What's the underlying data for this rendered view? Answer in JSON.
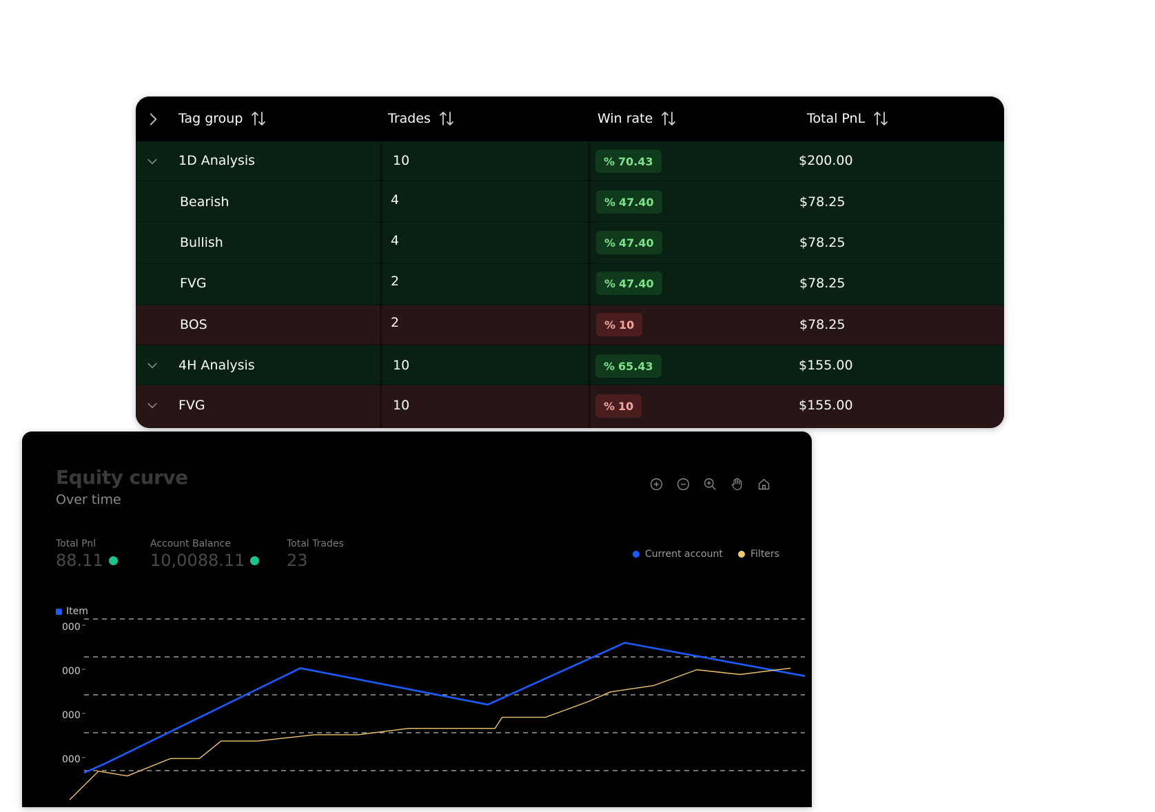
{
  "table": {
    "headers": [
      {
        "label": "Tag group"
      },
      {
        "label": "Trades"
      },
      {
        "label": "Win rate"
      },
      {
        "label": "Total PnL"
      }
    ],
    "rows": [
      {
        "name": "1D Analysis",
        "trades": "10",
        "win_symbol": "%",
        "win_rate": "70.43",
        "pnl": "$200.00",
        "status": "positive",
        "group": true
      },
      {
        "name": "Bearish",
        "trades": "4",
        "win_symbol": "%",
        "win_rate": "47.40",
        "pnl": "$78.25",
        "status": "positive",
        "group": false
      },
      {
        "name": "Bullish",
        "trades": "4",
        "win_symbol": "%",
        "win_rate": "47.40",
        "pnl": "$78.25",
        "status": "positive",
        "group": false
      },
      {
        "name": "FVG",
        "trades": "2",
        "win_symbol": "%",
        "win_rate": "47.40",
        "pnl": "$78.25",
        "status": "positive",
        "group": false
      },
      {
        "name": "BOS",
        "trades": "2",
        "win_symbol": "%",
        "win_rate": "10",
        "pnl": "$78.25",
        "status": "negative",
        "group": false
      },
      {
        "name": "4H Analysis",
        "trades": "10",
        "win_symbol": "%",
        "win_rate": "65.43",
        "pnl": "$155.00",
        "status": "positive",
        "group": true
      },
      {
        "name": "FVG",
        "trades": "10",
        "win_symbol": "%",
        "win_rate": "10",
        "pnl": "$155.00",
        "status": "negative",
        "group": true
      }
    ]
  },
  "equity": {
    "title": "Equity curve",
    "subtitle": "Over time",
    "tools": [
      "zoom-in-icon",
      "zoom-out-icon",
      "magnifier-icon",
      "pan-hand-icon",
      "home-icon"
    ],
    "stats": [
      {
        "label": "Total Pnl",
        "value": "88.11",
        "trend": "up"
      },
      {
        "label": "Account Balance",
        "value": "10,0088.11",
        "trend": "up"
      },
      {
        "label": "Total Trades",
        "value": "23",
        "trend": ""
      }
    ],
    "legend": [
      {
        "label": "Current account",
        "color": "#1a5cff"
      },
      {
        "label": "Filters",
        "color": "#f2c66d"
      }
    ],
    "item_legend": "Item",
    "colors": {
      "positive_row": "#082112",
      "negative_row": "#281515",
      "current": "#1a5cff",
      "filters": "#f2c66d"
    }
  },
  "chart_data": {
    "type": "line",
    "ytick_labels": [
      "000",
      "000",
      "000",
      "000"
    ],
    "series": [
      {
        "name": "Current account",
        "color": "#1a5cff",
        "points": [
          [
            0,
            0.03
          ],
          [
            0.03,
            0.09
          ],
          [
            0.3,
            0.69
          ],
          [
            0.56,
            0.46
          ],
          [
            0.75,
            0.85
          ],
          [
            1.0,
            0.64
          ]
        ]
      },
      {
        "name": "Filters",
        "color": "#f2c66d",
        "points": [
          [
            -0.02,
            -0.14
          ],
          [
            0.02,
            0.04
          ],
          [
            0.06,
            0.01
          ],
          [
            0.12,
            0.12
          ],
          [
            0.16,
            0.12
          ],
          [
            0.19,
            0.23
          ],
          [
            0.24,
            0.23
          ],
          [
            0.32,
            0.27
          ],
          [
            0.38,
            0.27
          ],
          [
            0.45,
            0.31
          ],
          [
            0.57,
            0.31
          ],
          [
            0.58,
            0.38
          ],
          [
            0.64,
            0.38
          ],
          [
            0.7,
            0.48
          ],
          [
            0.73,
            0.54
          ],
          [
            0.79,
            0.58
          ],
          [
            0.85,
            0.68
          ],
          [
            0.91,
            0.65
          ],
          [
            0.98,
            0.69
          ]
        ]
      }
    ]
  }
}
